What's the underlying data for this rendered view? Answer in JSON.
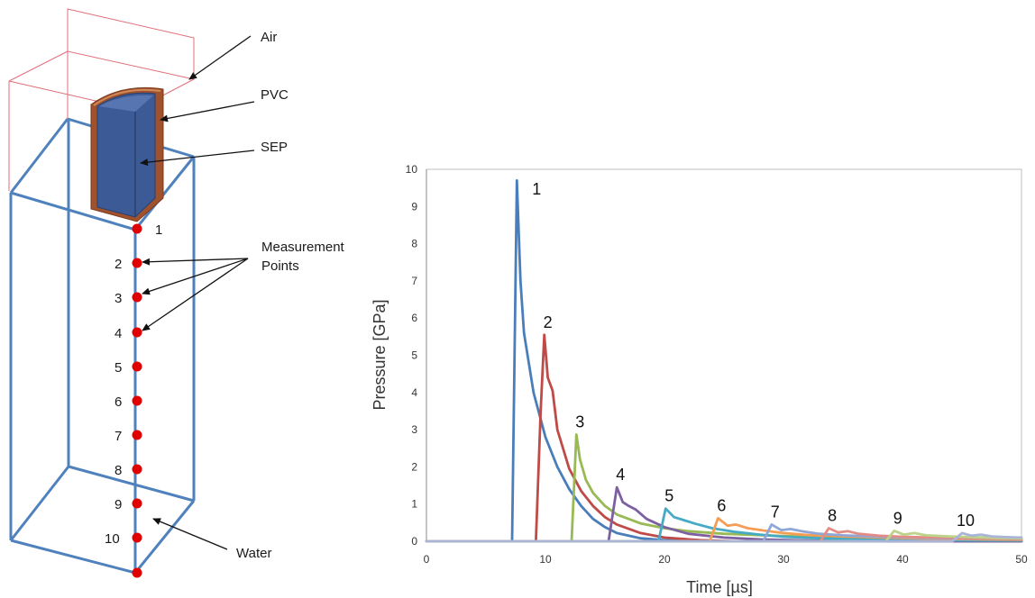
{
  "diagram": {
    "labels": {
      "air": "Air",
      "pvc": "PVC",
      "sep": "SEP",
      "measurement_line1": "Measurement",
      "measurement_line2": "Points",
      "water": "Water"
    },
    "point_numbers": [
      "1",
      "2",
      "3",
      "4",
      "5",
      "6",
      "7",
      "8",
      "9",
      "10"
    ],
    "colors": {
      "water_box": "#4f81bd",
      "air_box": "#e0707a",
      "pvc": "#a0522d",
      "sep": "#3c5a96",
      "points": "#e00000"
    }
  },
  "chart_data": {
    "type": "line",
    "xlabel": "Time [µs]",
    "ylabel": "Pressure [GPa]",
    "xlim": [
      0,
      50
    ],
    "ylim": [
      0,
      10
    ],
    "xticks": [
      0,
      10,
      20,
      30,
      40,
      50
    ],
    "yticks": [
      0,
      1,
      2,
      3,
      4,
      5,
      6,
      7,
      8,
      9,
      10
    ],
    "grid": false,
    "legend": "none",
    "series": [
      {
        "label": "1",
        "color": "#4a7ebb",
        "onset": 7.2,
        "peak_time": 7.6,
        "peak": 9.7,
        "points": [
          [
            0,
            0
          ],
          [
            7.2,
            0
          ],
          [
            7.6,
            9.7
          ],
          [
            7.9,
            7.0
          ],
          [
            8.2,
            5.6
          ],
          [
            9,
            4.0
          ],
          [
            10,
            2.8
          ],
          [
            11,
            2.0
          ],
          [
            12,
            1.4
          ],
          [
            13,
            0.95
          ],
          [
            14,
            0.6
          ],
          [
            15,
            0.38
          ],
          [
            16,
            0.22
          ],
          [
            18,
            0.08
          ],
          [
            20,
            0.03
          ],
          [
            25,
            0.0
          ],
          [
            50,
            0
          ]
        ]
      },
      {
        "label": "2",
        "color": "#be4b48",
        "onset": 9.2,
        "peak_time": 9.9,
        "peak": 5.55,
        "points": [
          [
            0,
            0
          ],
          [
            9.2,
            0
          ],
          [
            9.6,
            3.5
          ],
          [
            9.9,
            5.55
          ],
          [
            10.2,
            4.4
          ],
          [
            10.6,
            4.05
          ],
          [
            11,
            3.0
          ],
          [
            12,
            1.95
          ],
          [
            13,
            1.35
          ],
          [
            14,
            0.95
          ],
          [
            15,
            0.65
          ],
          [
            16,
            0.45
          ],
          [
            18,
            0.22
          ],
          [
            20,
            0.1
          ],
          [
            23,
            0.03
          ],
          [
            26,
            0
          ],
          [
            50,
            0
          ]
        ]
      },
      {
        "label": "3",
        "color": "#98b954",
        "onset": 12.2,
        "peak_time": 12.6,
        "peak": 2.87,
        "points": [
          [
            0,
            0
          ],
          [
            12.2,
            0
          ],
          [
            12.6,
            2.87
          ],
          [
            12.9,
            2.2
          ],
          [
            13.4,
            1.65
          ],
          [
            14,
            1.3
          ],
          [
            15,
            0.95
          ],
          [
            16,
            0.72
          ],
          [
            18,
            0.48
          ],
          [
            20,
            0.35
          ],
          [
            22,
            0.27
          ],
          [
            25,
            0.2
          ],
          [
            30,
            0.14
          ],
          [
            35,
            0.1
          ],
          [
            40,
            0.07
          ],
          [
            45,
            0.05
          ],
          [
            50,
            0.04
          ]
        ]
      },
      {
        "label": "4",
        "color": "#7d60a0",
        "onset": 15.3,
        "peak_time": 16.0,
        "peak": 1.45,
        "points": [
          [
            0,
            0
          ],
          [
            15.3,
            0
          ],
          [
            16.0,
            1.45
          ],
          [
            16.5,
            1.05
          ],
          [
            17,
            0.95
          ],
          [
            17.6,
            0.85
          ],
          [
            18.5,
            0.6
          ],
          [
            20,
            0.38
          ],
          [
            22,
            0.2
          ],
          [
            25,
            0.1
          ],
          [
            28,
            0.05
          ],
          [
            32,
            0.02
          ],
          [
            36,
            0
          ],
          [
            50,
            0
          ]
        ]
      },
      {
        "label": "5",
        "color": "#46aac5",
        "onset": 19.5,
        "peak_time": 20.1,
        "peak": 0.88,
        "points": [
          [
            0,
            0
          ],
          [
            19.5,
            0
          ],
          [
            20.1,
            0.88
          ],
          [
            20.8,
            0.65
          ],
          [
            21.5,
            0.58
          ],
          [
            22.5,
            0.48
          ],
          [
            24,
            0.35
          ],
          [
            26,
            0.25
          ],
          [
            28,
            0.18
          ],
          [
            30,
            0.12
          ],
          [
            33,
            0.08
          ],
          [
            36,
            0.05
          ],
          [
            40,
            0.03
          ],
          [
            50,
            0.02
          ]
        ]
      },
      {
        "label": "6",
        "color": "#f59d56",
        "onset": 23.8,
        "peak_time": 24.5,
        "peak": 0.62,
        "points": [
          [
            0,
            0
          ],
          [
            23.8,
            0
          ],
          [
            24.5,
            0.62
          ],
          [
            25.3,
            0.42
          ],
          [
            26,
            0.45
          ],
          [
            27,
            0.35
          ],
          [
            28.5,
            0.28
          ],
          [
            30,
            0.22
          ],
          [
            32,
            0.17
          ],
          [
            35,
            0.13
          ],
          [
            38,
            0.1
          ],
          [
            42,
            0.07
          ],
          [
            46,
            0.05
          ],
          [
            50,
            0.04
          ]
        ]
      },
      {
        "label": "7",
        "color": "#8fa7d8",
        "onset": 28.3,
        "peak_time": 29.0,
        "peak": 0.45,
        "points": [
          [
            0,
            0
          ],
          [
            28.3,
            0
          ],
          [
            29.0,
            0.45
          ],
          [
            29.8,
            0.3
          ],
          [
            30.6,
            0.33
          ],
          [
            31.5,
            0.27
          ],
          [
            33,
            0.2
          ],
          [
            35,
            0.16
          ],
          [
            38,
            0.12
          ],
          [
            42,
            0.09
          ],
          [
            46,
            0.07
          ],
          [
            50,
            0.06
          ]
        ]
      },
      {
        "label": "8",
        "color": "#e38c86",
        "onset": 33.1,
        "peak_time": 33.8,
        "peak": 0.35,
        "points": [
          [
            0,
            0
          ],
          [
            33.1,
            0
          ],
          [
            33.8,
            0.35
          ],
          [
            34.6,
            0.24
          ],
          [
            35.4,
            0.27
          ],
          [
            36.3,
            0.2
          ],
          [
            38,
            0.15
          ],
          [
            40,
            0.12
          ],
          [
            43,
            0.1
          ],
          [
            46,
            0.08
          ],
          [
            50,
            0.06
          ]
        ]
      },
      {
        "label": "9",
        "color": "#bcd48a",
        "onset": 38.6,
        "peak_time": 39.3,
        "peak": 0.28,
        "points": [
          [
            0,
            0
          ],
          [
            38.6,
            0
          ],
          [
            39.3,
            0.28
          ],
          [
            40.1,
            0.18
          ],
          [
            41,
            0.22
          ],
          [
            42,
            0.16
          ],
          [
            44,
            0.13
          ],
          [
            46,
            0.11
          ],
          [
            48,
            0.09
          ],
          [
            50,
            0.08
          ]
        ]
      },
      {
        "label": "10",
        "color": "#aab4d6",
        "onset": 44.2,
        "peak_time": 45.0,
        "peak": 0.22,
        "points": [
          [
            0,
            0
          ],
          [
            44.2,
            0
          ],
          [
            45.0,
            0.22
          ],
          [
            45.8,
            0.15
          ],
          [
            46.6,
            0.18
          ],
          [
            47.5,
            0.13
          ],
          [
            49,
            0.11
          ],
          [
            50,
            0.1
          ]
        ]
      }
    ]
  }
}
